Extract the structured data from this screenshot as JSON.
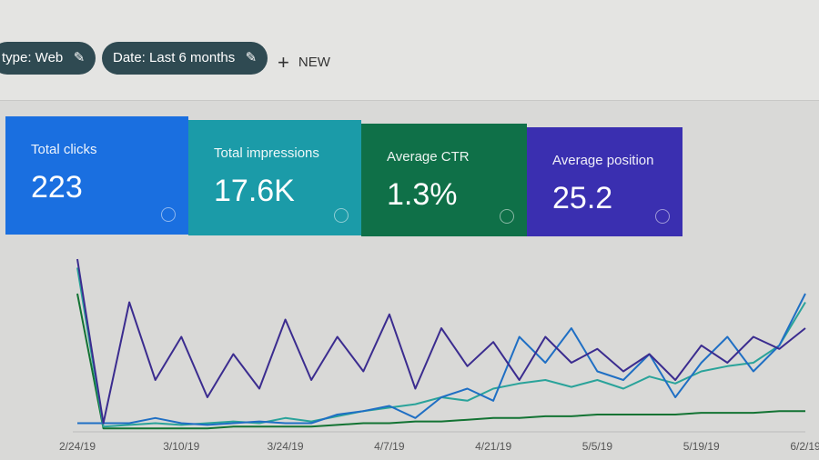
{
  "filters": [
    "type: Web",
    "Date: Last 6 months"
  ],
  "new_button": "NEW",
  "metrics": [
    {
      "label": "Total clicks",
      "value": "223"
    },
    {
      "label": "Total impressions",
      "value": "17.6K"
    },
    {
      "label": "Average CTR",
      "value": "1.3%"
    },
    {
      "label": "Average position",
      "value": "25.2"
    }
  ],
  "chart_data": {
    "type": "line",
    "categories": [
      "2/24/19",
      null,
      null,
      null,
      "3/10/19",
      null,
      null,
      null,
      "3/24/19",
      null,
      null,
      null,
      "4/7/19",
      null,
      null,
      null,
      "4/21/19",
      null,
      null,
      null,
      "5/5/19",
      null,
      null,
      null,
      "5/19/19",
      null,
      null,
      null,
      "6/2/19"
    ],
    "ylim": [
      0,
      100
    ],
    "series": [
      {
        "color": "#3b2c8f",
        "values": [
          100,
          5,
          75,
          30,
          55,
          20,
          45,
          25,
          65,
          30,
          55,
          35,
          68,
          25,
          60,
          38,
          52,
          30,
          55,
          40,
          48,
          35,
          45,
          30,
          50,
          40,
          55,
          48,
          60
        ]
      },
      {
        "color": "#1f6fc4",
        "values": [
          5,
          5,
          5,
          8,
          5,
          4,
          5,
          6,
          5,
          5,
          10,
          12,
          15,
          8,
          20,
          25,
          18,
          55,
          40,
          60,
          35,
          30,
          45,
          20,
          40,
          55,
          35,
          50,
          80
        ]
      },
      {
        "color": "#2aa39a",
        "values": [
          95,
          3,
          4,
          5,
          4,
          5,
          6,
          5,
          8,
          6,
          9,
          12,
          14,
          16,
          20,
          18,
          25,
          28,
          30,
          26,
          30,
          25,
          32,
          28,
          35,
          38,
          40,
          50,
          75
        ]
      },
      {
        "color": "#137333",
        "values": [
          80,
          2,
          2,
          2,
          2,
          2,
          3,
          3,
          3,
          3,
          4,
          5,
          5,
          6,
          6,
          7,
          8,
          8,
          9,
          9,
          10,
          10,
          10,
          10,
          11,
          11,
          11,
          12,
          12
        ]
      }
    ]
  }
}
